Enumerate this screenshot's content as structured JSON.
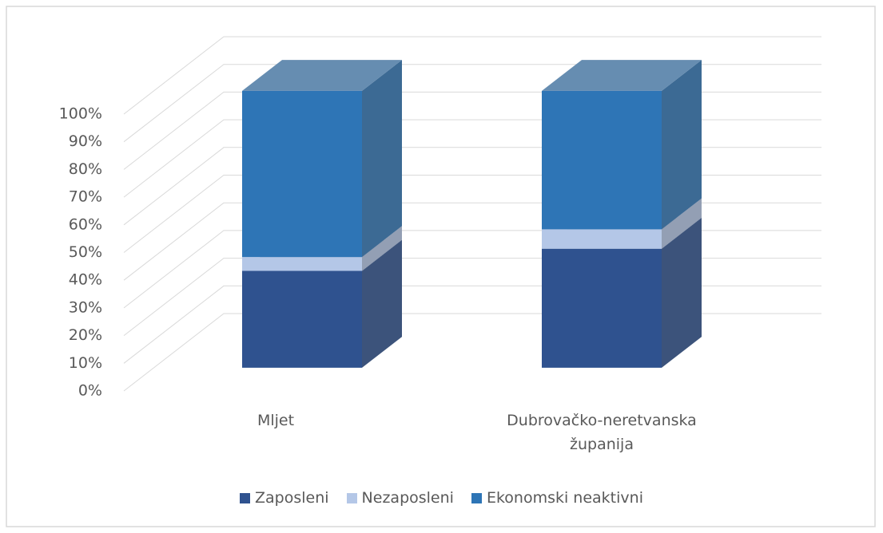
{
  "chart_data": {
    "type": "bar3d_stacked",
    "categories": [
      "Mljet",
      "Dubrovačko-neretvanska županija"
    ],
    "series": [
      {
        "name": "Zaposleni",
        "color": "#2f528f",
        "values": [
          35,
          43
        ]
      },
      {
        "name": "Nezaposleni",
        "color": "#b4c7e7",
        "values": [
          5,
          7
        ]
      },
      {
        "name": "Ekonomski neaktivni",
        "color": "#2e75b6",
        "values": [
          60,
          50
        ]
      }
    ],
    "ylim": [
      0,
      100
    ],
    "yticks": [
      {
        "value": 0,
        "label": "0%"
      },
      {
        "value": 10,
        "label": "10%"
      },
      {
        "value": 20,
        "label": "20%"
      },
      {
        "value": 30,
        "label": "30%"
      },
      {
        "value": 40,
        "label": "40%"
      },
      {
        "value": 50,
        "label": "50%"
      },
      {
        "value": 60,
        "label": "60%"
      },
      {
        "value": 70,
        "label": "70%"
      },
      {
        "value": 80,
        "label": "80%"
      },
      {
        "value": 90,
        "label": "90%"
      },
      {
        "value": 100,
        "label": "100%"
      }
    ],
    "grid": true,
    "legend": "bottom"
  }
}
